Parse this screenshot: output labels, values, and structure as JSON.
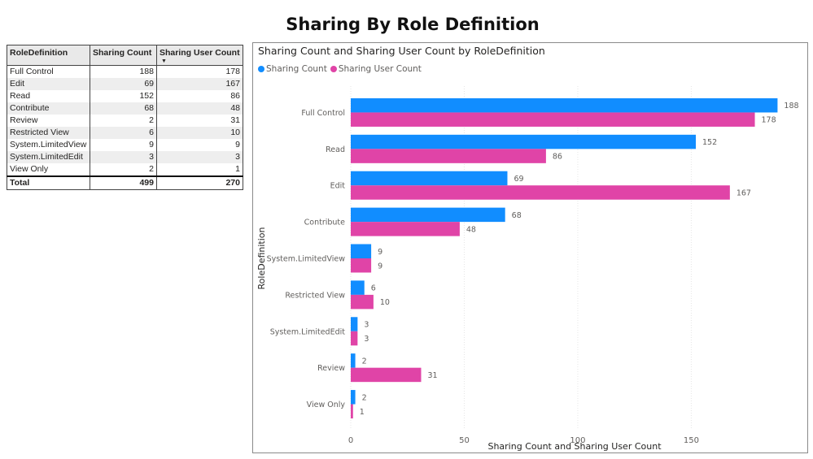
{
  "page": {
    "title": "Sharing By Role Definition"
  },
  "table": {
    "columns": [
      "RoleDefinition",
      "Sharing Count",
      "Sharing User Count"
    ],
    "sort_indicator": "▼",
    "rows": [
      {
        "role": "Full Control",
        "sharing": "188",
        "users": "178"
      },
      {
        "role": "Edit",
        "sharing": "69",
        "users": "167"
      },
      {
        "role": "Read",
        "sharing": "152",
        "users": "86"
      },
      {
        "role": "Contribute",
        "sharing": "68",
        "users": "48"
      },
      {
        "role": "Review",
        "sharing": "2",
        "users": "31"
      },
      {
        "role": "Restricted View",
        "sharing": "6",
        "users": "10"
      },
      {
        "role": "System.LimitedView",
        "sharing": "9",
        "users": "9"
      },
      {
        "role": "System.LimitedEdit",
        "sharing": "3",
        "users": "3"
      },
      {
        "role": "View Only",
        "sharing": "2",
        "users": "1"
      }
    ],
    "total": {
      "label": "Total",
      "sharing": "499",
      "users": "270"
    }
  },
  "chart_data": {
    "type": "bar",
    "orientation": "horizontal",
    "title": "Sharing Count and Sharing User Count by RoleDefinition",
    "categories": [
      "Full Control",
      "Read",
      "Edit",
      "Contribute",
      "System.LimitedView",
      "Restricted View",
      "System.LimitedEdit",
      "Review",
      "View Only"
    ],
    "series": [
      {
        "name": "Sharing Count",
        "color": "#118DFF",
        "values": [
          188,
          152,
          69,
          68,
          9,
          6,
          3,
          2,
          2
        ]
      },
      {
        "name": "Sharing User Count",
        "color": "#E044A7",
        "values": [
          178,
          86,
          167,
          48,
          9,
          10,
          3,
          31,
          1
        ]
      }
    ],
    "xlabel": "Sharing Count and Sharing User Count",
    "ylabel": "RoleDefinition",
    "xlim": [
      0,
      190
    ],
    "xticks": [
      0,
      50,
      100,
      150
    ],
    "grid": true,
    "legend": "top-left",
    "colors": {
      "gridline": "#e6e6e6",
      "label": "#605e5c"
    }
  }
}
